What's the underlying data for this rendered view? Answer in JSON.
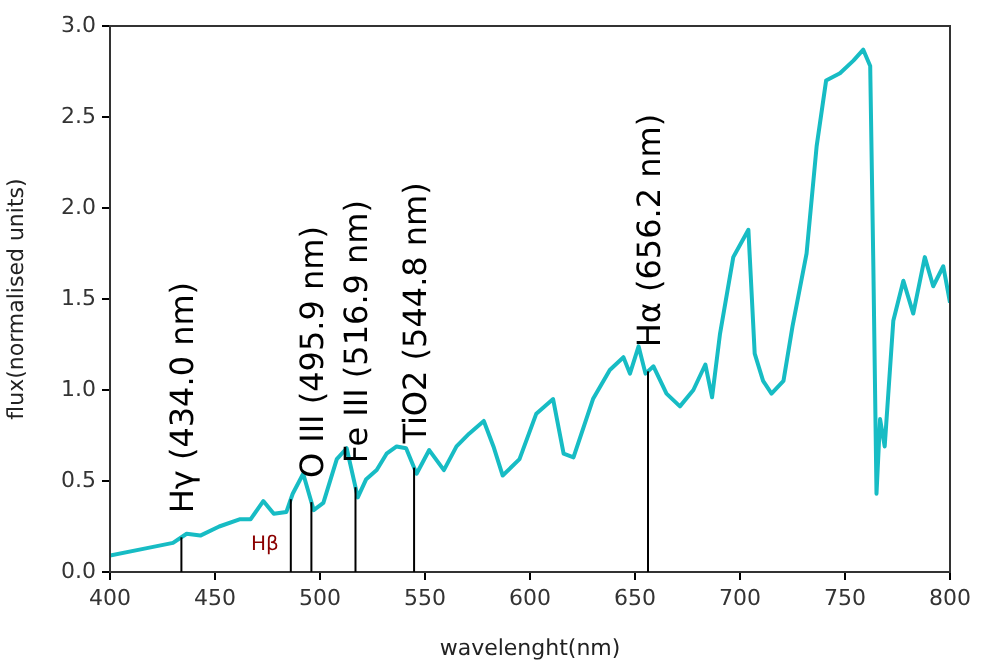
{
  "chart_data": {
    "type": "line",
    "xlabel": "wavelenght(nm)",
    "ylabel": "flux(normalised units)",
    "xlim": [
      400,
      800
    ],
    "xticks": [
      400,
      450,
      500,
      550,
      600,
      650,
      700,
      750,
      800
    ],
    "ylim": [
      0,
      3
    ],
    "yticks": [
      {
        "value": 0,
        "label": "0.0"
      },
      {
        "value": 0.5,
        "label": "0.5"
      },
      {
        "value": 1,
        "label": "1.0"
      },
      {
        "value": 1.5,
        "label": "1.5"
      },
      {
        "value": 2,
        "label": "2.0"
      },
      {
        "value": 2.5,
        "label": "2.5"
      },
      {
        "value": 3,
        "label": "3.0"
      }
    ],
    "grid": false,
    "legend": false,
    "marker": "none",
    "line_style": "solid",
    "series": [
      {
        "color": "#17bcc4",
        "x": [
          400,
          417,
          430,
          436.5,
          443,
          452,
          462,
          467,
          473,
          478,
          484,
          487,
          492,
          497,
          501.6,
          508,
          512.7,
          518,
          522,
          527,
          531.7,
          536.5,
          541,
          546,
          552,
          559,
          565,
          571,
          578,
          582.6,
          587,
          595,
          603,
          611,
          616,
          620.7,
          630,
          638,
          644.5,
          647.6,
          651.7,
          655,
          658.8,
          665,
          671.4,
          677.8,
          683.5,
          686.7,
          690.5,
          696.8,
          704,
          707,
          711,
          715,
          720.7,
          725,
          731.7,
          736.5,
          741,
          747.6,
          754,
          758.7,
          762,
          763.5,
          765,
          766.7,
          768.9,
          773,
          777.8,
          782.5,
          788,
          792,
          796.8,
          800
        ],
        "values": [
          0.09,
          0.13,
          0.16,
          0.21,
          0.2,
          0.25,
          0.29,
          0.29,
          0.39,
          0.32,
          0.33,
          0.43,
          0.54,
          0.34,
          0.38,
          0.62,
          0.68,
          0.41,
          0.51,
          0.56,
          0.65,
          0.69,
          0.68,
          0.54,
          0.67,
          0.56,
          0.69,
          0.76,
          0.83,
          0.69,
          0.53,
          0.62,
          0.87,
          0.95,
          0.65,
          0.63,
          0.95,
          1.11,
          1.18,
          1.09,
          1.24,
          1.09,
          1.13,
          0.98,
          0.91,
          1.0,
          1.14,
          0.96,
          1.31,
          1.73,
          1.88,
          1.2,
          1.05,
          0.98,
          1.05,
          1.35,
          1.75,
          2.34,
          2.7,
          2.74,
          2.81,
          2.87,
          2.78,
          1.68,
          0.43,
          0.84,
          0.69,
          1.38,
          1.6,
          1.42,
          1.73,
          1.57,
          1.68,
          1.48
        ]
      }
    ],
    "ref_lines": [
      {
        "axis": "x",
        "value": 434.0,
        "label": "Hγ (434.0 nm)"
      },
      {
        "axis": "x",
        "value": 486.1
      },
      {
        "axis": "x",
        "value": 495.9,
        "label": "O III (495.9 nm)"
      },
      {
        "axis": "x",
        "value": 516.9,
        "label": "Fe III (516.9 nm)"
      },
      {
        "axis": "x",
        "value": 544.8,
        "label": "TiO2 (544.8 nm)"
      },
      {
        "axis": "x",
        "value": 656.2,
        "label": "Hα (656.2 nm)"
      }
    ],
    "annotations": [
      {
        "text": "Hβ",
        "x": 486.1,
        "y": 0.15
      }
    ]
  }
}
